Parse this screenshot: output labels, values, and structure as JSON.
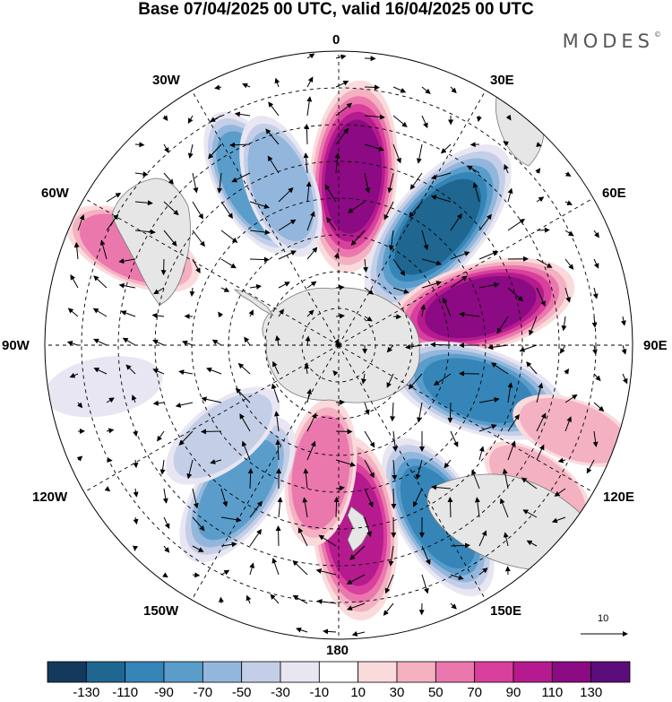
{
  "title": "Base 07/04/2025 00 UTC, valid 16/04/2025 00 UTC",
  "logo": "MODES",
  "logo_mark": "©",
  "longitude_labels": {
    "lon_0": "0",
    "lon_30e": "30E",
    "lon_60e": "60E",
    "lon_90e": "90E",
    "lon_120e": "120E",
    "lon_150e": "150E",
    "lon_180": "180",
    "lon_150w": "150W",
    "lon_120w": "120W",
    "lon_90w": "90W",
    "lon_60w": "60W",
    "lon_30w": "30W"
  },
  "reference_vector": "10",
  "colorbar": {
    "levels": [
      "-130",
      "-110",
      "-90",
      "-70",
      "-50",
      "-30",
      "-10",
      "10",
      "30",
      "50",
      "70",
      "90",
      "110",
      "130"
    ],
    "colors": [
      "#133a5c",
      "#1f6691",
      "#3685b8",
      "#5a9dcb",
      "#93b6dc",
      "#c4cfe7",
      "#e7e6f2",
      "#ffffff",
      "#fbdadc",
      "#f3b1c2",
      "#eb78ad",
      "#d93f9c",
      "#b51b8e",
      "#8c0a83",
      "#5b0d7a"
    ]
  },
  "anomaly_centers": [
    {
      "lon": 5,
      "lat": -44,
      "value": 115
    },
    {
      "lon": 40,
      "lat": -48,
      "value": -125
    },
    {
      "lon": 75,
      "lat": -50,
      "value": 115
    },
    {
      "lon": 108,
      "lat": -50,
      "value": -105
    },
    {
      "lon": 150,
      "lat": -36,
      "value": -95
    },
    {
      "lon": 175,
      "lat": -40,
      "value": 105
    },
    {
      "lon": -172,
      "lat": -55,
      "value": 60
    },
    {
      "lon": -145,
      "lat": -42,
      "value": -85
    },
    {
      "lon": -128,
      "lat": -50,
      "value": -45
    },
    {
      "lon": -28,
      "lat": -40,
      "value": -70
    },
    {
      "lon": -20,
      "lat": -44,
      "value": -60
    },
    {
      "lon": -65,
      "lat": -28,
      "value": 55
    },
    {
      "lon": -100,
      "lat": -25,
      "value": -25
    },
    {
      "lon": 110,
      "lat": -22,
      "value": 35
    },
    {
      "lon": 125,
      "lat": -24,
      "value": 30
    }
  ]
}
